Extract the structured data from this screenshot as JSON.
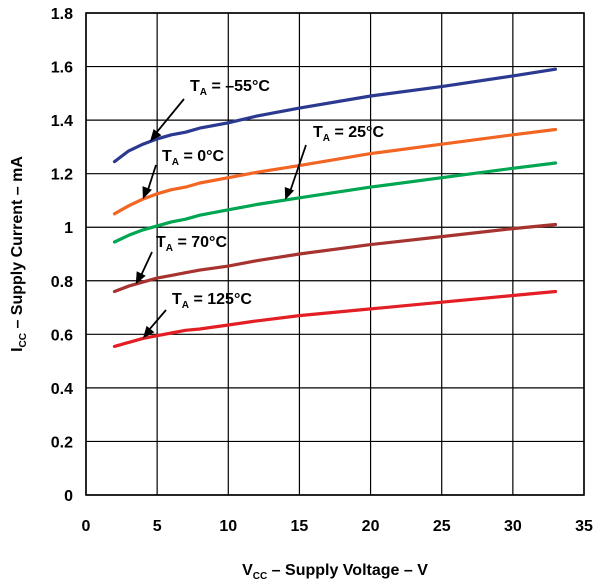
{
  "chart_data": {
    "type": "line",
    "xlabel": {
      "main": "V",
      "sub": "CC",
      "rest": " – Supply Voltage – V"
    },
    "ylabel": {
      "main": "I",
      "sub": "CC",
      "rest": " – Supply Current – mA"
    },
    "xlim": [
      0,
      35
    ],
    "ylim": [
      0,
      1.8
    ],
    "xticks": [
      "0",
      "5",
      "10",
      "15",
      "20",
      "25",
      "30",
      "35"
    ],
    "yticks": [
      "0",
      "0.2",
      "0.4",
      "0.6",
      "0.8",
      "1",
      "1.2",
      "1.4",
      "1.6",
      "1.8"
    ],
    "grid": true,
    "series": [
      {
        "name": "= –55°C",
        "color": "#2b3990",
        "x": [
          2,
          3,
          4,
          5,
          6,
          7,
          8,
          10,
          12,
          15,
          20,
          25,
          30,
          33
        ],
        "y": [
          1.245,
          1.285,
          1.31,
          1.33,
          1.345,
          1.355,
          1.37,
          1.39,
          1.415,
          1.445,
          1.49,
          1.525,
          1.565,
          1.59
        ]
      },
      {
        "name": "= 0°C",
        "color": "#f26522",
        "x": [
          2,
          3,
          4,
          5,
          6,
          7,
          8,
          10,
          12,
          15,
          20,
          25,
          30,
          33
        ],
        "y": [
          1.05,
          1.08,
          1.105,
          1.125,
          1.14,
          1.15,
          1.165,
          1.185,
          1.205,
          1.23,
          1.275,
          1.31,
          1.345,
          1.365
        ]
      },
      {
        "name": "= 25°C",
        "color": "#00a651",
        "x": [
          2,
          3,
          4,
          5,
          6,
          7,
          8,
          10,
          12,
          15,
          20,
          25,
          30,
          33
        ],
        "y": [
          0.945,
          0.97,
          0.99,
          1.005,
          1.02,
          1.03,
          1.045,
          1.065,
          1.085,
          1.11,
          1.15,
          1.185,
          1.22,
          1.24
        ]
      },
      {
        "name": "= 70°C",
        "color": "#a6332f",
        "x": [
          2,
          3,
          4,
          5,
          6,
          7,
          8,
          10,
          12,
          15,
          20,
          25,
          30,
          33
        ],
        "y": [
          0.76,
          0.78,
          0.795,
          0.81,
          0.82,
          0.83,
          0.84,
          0.855,
          0.875,
          0.9,
          0.935,
          0.965,
          0.995,
          1.01
        ]
      },
      {
        "name": "= 125°C",
        "color": "#e31e25",
        "x": [
          2,
          3,
          4,
          5,
          6,
          7,
          8,
          10,
          12,
          15,
          20,
          25,
          30,
          33
        ],
        "y": [
          0.555,
          0.57,
          0.585,
          0.595,
          0.605,
          0.615,
          0.62,
          0.635,
          0.65,
          0.67,
          0.695,
          0.72,
          0.745,
          0.76
        ]
      }
    ],
    "annotations": [
      {
        "main": "T",
        "sub": "A",
        "rest": " = –55°C",
        "series": 0,
        "at_x": 4.5
      },
      {
        "main": "T",
        "sub": "A",
        "rest": " = 0°C",
        "series": 1,
        "at_x": 4
      },
      {
        "main": "T",
        "sub": "A",
        "rest": " = 25°C",
        "series": 2,
        "at_x": 14
      },
      {
        "main": "T",
        "sub": "A",
        "rest": " = 70°C",
        "series": 3,
        "at_x": 3.5
      },
      {
        "main": "T",
        "sub": "A",
        "rest": " = 125°C",
        "series": 4,
        "at_x": 4
      }
    ]
  }
}
